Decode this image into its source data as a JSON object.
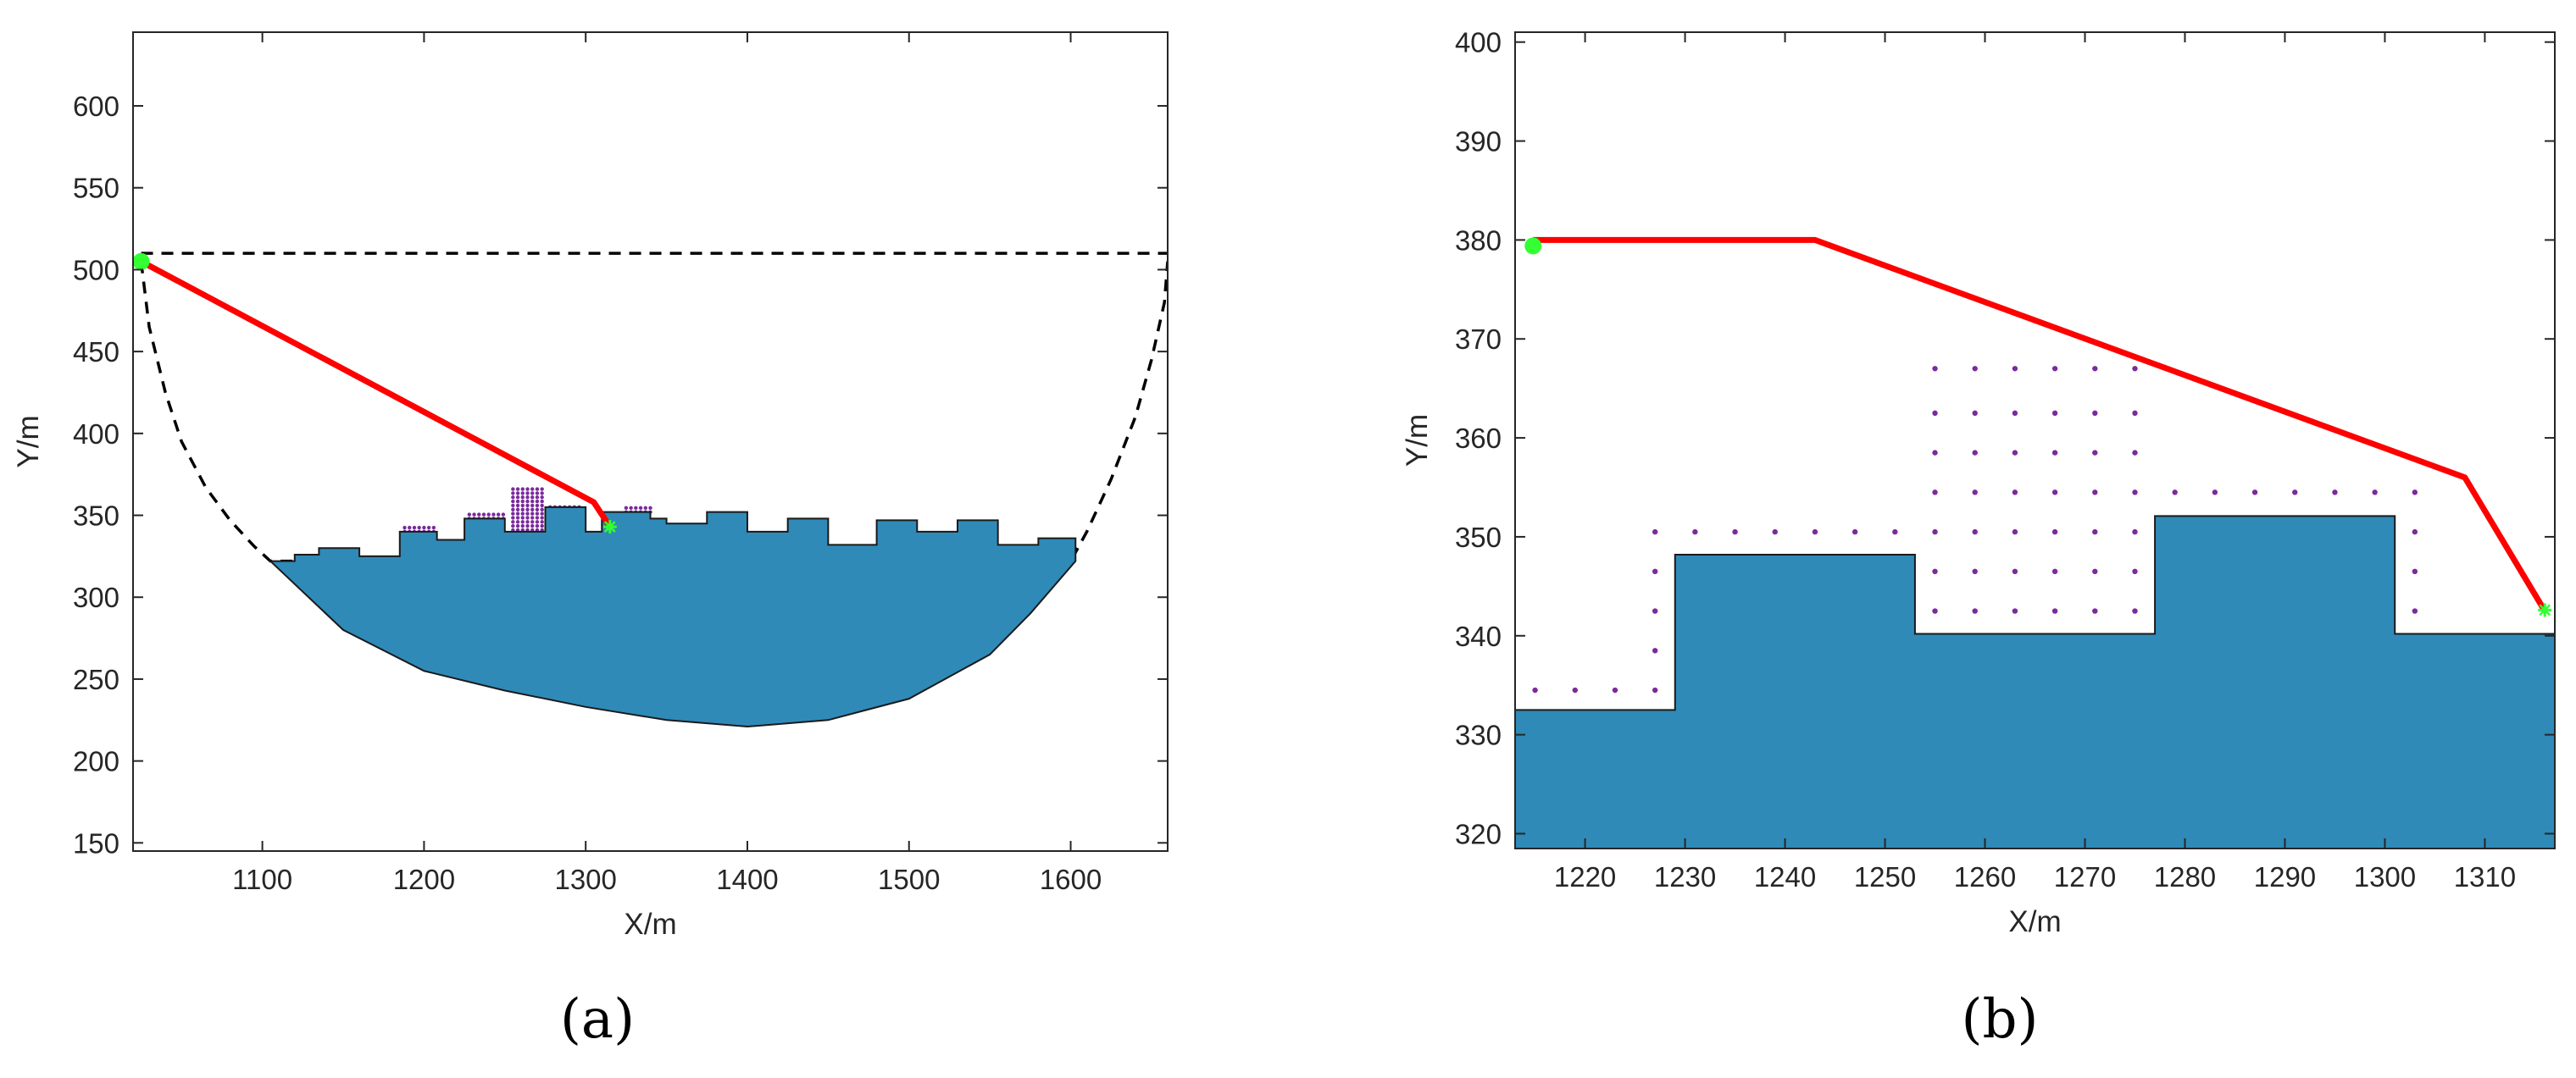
{
  "chart_data": [
    {
      "type": "line",
      "panel_label": "(a)",
      "xlabel": "X/m",
      "ylabel": "Y/m",
      "xlim": [
        1020,
        1660
      ],
      "ylim": [
        145,
        645
      ],
      "xticks": [
        1100,
        1200,
        1300,
        1400,
        1500,
        1600
      ],
      "yticks": [
        150,
        200,
        250,
        300,
        350,
        400,
        450,
        500,
        550,
        600
      ],
      "grid": false,
      "colors": {
        "terrain": "#2f8ab8",
        "path": "#ff0000",
        "boundary": "#000000",
        "marker": "#33ff33",
        "points": "#7b2a9c"
      },
      "series": [
        {
          "role": "dashed-boundary-top",
          "x": [
            1025,
            1660
          ],
          "y": [
            510,
            510
          ]
        },
        {
          "role": "dashed-boundary-curve",
          "x": [
            1025,
            1030,
            1040,
            1050,
            1065,
            1080,
            1095,
            1105,
            1600,
            1610,
            1625,
            1640,
            1650,
            1658,
            1660
          ],
          "y": [
            505,
            465,
            425,
            395,
            367,
            347,
            331,
            322,
            322,
            340,
            372,
            410,
            445,
            480,
            505
          ]
        },
        {
          "role": "terrain-top",
          "x": [
            1105,
            1120,
            1120,
            1135,
            1135,
            1160,
            1160,
            1185,
            1185,
            1208,
            1208,
            1225,
            1225,
            1250,
            1250,
            1275,
            1275,
            1300,
            1300,
            1310,
            1310,
            1340,
            1340,
            1350,
            1350,
            1375,
            1375,
            1400,
            1400,
            1425,
            1425,
            1450,
            1450,
            1480,
            1480,
            1505,
            1505,
            1530,
            1530,
            1555,
            1555,
            1580,
            1580,
            1603,
            1603
          ],
          "y": [
            322,
            322,
            326,
            326,
            330,
            330,
            325,
            325,
            340,
            340,
            335,
            335,
            348,
            348,
            340,
            340,
            355,
            355,
            340,
            340,
            352,
            352,
            348,
            348,
            345,
            345,
            352,
            352,
            340,
            340,
            348,
            348,
            332,
            332,
            347,
            347,
            340,
            340,
            347,
            347,
            332,
            332,
            336,
            336,
            322
          ]
        },
        {
          "role": "terrain-bottom",
          "x": [
            1105,
            1150,
            1200,
            1250,
            1300,
            1350,
            1400,
            1450,
            1500,
            1550,
            1575,
            1603
          ],
          "y": [
            322,
            280,
            255,
            243,
            233,
            225,
            221,
            225,
            238,
            265,
            290,
            322
          ]
        },
        {
          "role": "planned-path",
          "x": [
            1025,
            1305,
            1315
          ],
          "y": [
            505,
            358,
            343
          ]
        }
      ],
      "points": [
        {
          "role": "start",
          "x": 1025,
          "y": 505
        },
        {
          "role": "goal",
          "x": 1315,
          "y": 343
        }
      ]
    },
    {
      "type": "line",
      "panel_label": "(b)",
      "xlabel": "X/m",
      "ylabel": "Y/m",
      "xlim": [
        1213,
        1317
      ],
      "ylim": [
        318.5,
        401
      ],
      "xticks": [
        1220,
        1230,
        1240,
        1250,
        1260,
        1270,
        1280,
        1290,
        1300,
        1310
      ],
      "yticks": [
        320,
        330,
        340,
        350,
        360,
        370,
        380,
        390,
        400
      ],
      "grid": false,
      "colors": {
        "terrain": "#2f8ab8",
        "path": "#ff0000",
        "marker": "#33ff33",
        "points": "#7b2a9c"
      },
      "series": [
        {
          "role": "terrain-top",
          "x": [
            1213,
            1229,
            1229,
            1253,
            1253,
            1277,
            1277,
            1301,
            1301,
            1317
          ],
          "y": [
            332.5,
            332.5,
            348.2,
            348.2,
            340.2,
            340.2,
            352.1,
            352.1,
            340.2,
            340.2
          ]
        },
        {
          "role": "planned-path",
          "x": [
            1214.8,
            1243,
            1308,
            1316
          ],
          "y": [
            380,
            380,
            356,
            342.5
          ]
        }
      ],
      "points": [
        {
          "role": "start",
          "x": 1214.8,
          "y": 379.4
        },
        {
          "role": "goal",
          "x": 1316,
          "y": 342.6
        }
      ]
    }
  ]
}
